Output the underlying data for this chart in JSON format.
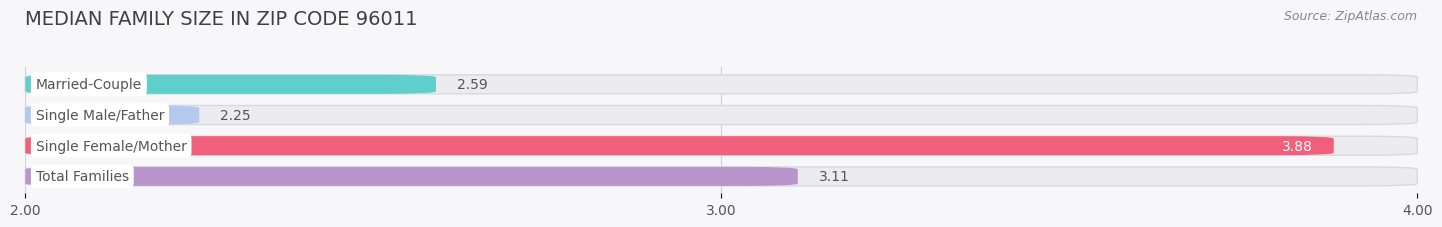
{
  "title": "MEDIAN FAMILY SIZE IN ZIP CODE 96011",
  "source": "Source: ZipAtlas.com",
  "categories": [
    "Married-Couple",
    "Single Male/Father",
    "Single Female/Mother",
    "Total Families"
  ],
  "values": [
    2.59,
    2.25,
    3.88,
    3.11
  ],
  "bar_colors": [
    "#5ecfcc",
    "#b5c9ee",
    "#f0607a",
    "#b896cc"
  ],
  "bar_bg_color": "#ebebf0",
  "bar_edge_color": "#d8d8e0",
  "xlim_data": [
    2.0,
    4.0
  ],
  "xticks": [
    2.0,
    3.0,
    4.0
  ],
  "xtick_labels": [
    "2.00",
    "3.00",
    "4.00"
  ],
  "background_color": "#f7f7fa",
  "title_fontsize": 14,
  "source_fontsize": 9,
  "label_fontsize": 10,
  "value_fontsize": 10,
  "bar_height": 0.62,
  "label_color": "#555555",
  "value_label_color_inside": "#ffffff",
  "value_label_color_outside": "#555555",
  "grid_color": "#d0d0d8",
  "label_box_color": "white"
}
